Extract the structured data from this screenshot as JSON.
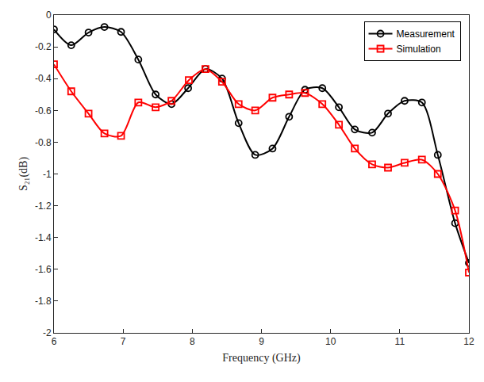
{
  "chart_data": {
    "type": "line",
    "x_label": "Frequency (GHz)",
    "y_label": "S₂₁(dB)",
    "xlim": [
      6,
      12
    ],
    "xticks": [
      6,
      7,
      8,
      9,
      10,
      11,
      12
    ],
    "ylim": [
      -2,
      0
    ],
    "yticks": [
      -2,
      -1.8,
      -1.6,
      -1.4,
      -1.2,
      -1,
      -0.8,
      -0.6,
      -0.4,
      -0.2,
      0
    ],
    "grid": false,
    "legend": "top right",
    "series": [
      {
        "name": "Measurement",
        "color": "#000000",
        "marker": "circle",
        "line_style": "solid",
        "x": [
          6.0,
          6.25,
          6.5,
          6.73,
          6.97,
          7.22,
          7.47,
          7.7,
          7.94,
          8.19,
          8.43,
          8.67,
          8.91,
          9.16,
          9.4,
          9.63,
          9.88,
          10.12,
          10.35,
          10.6,
          10.83,
          11.07,
          11.32,
          11.55,
          11.8,
          12.0
        ],
        "values": [
          -0.09,
          -0.19,
          -0.11,
          -0.075,
          -0.106,
          -0.28,
          -0.5,
          -0.56,
          -0.46,
          -0.34,
          -0.4,
          -0.68,
          -0.88,
          -0.84,
          -0.64,
          -0.47,
          -0.46,
          -0.58,
          -0.72,
          -0.74,
          -0.62,
          -0.54,
          -0.55,
          -0.88,
          -1.31,
          -1.56
        ]
      },
      {
        "name": "Simulation",
        "color": "#ff0000",
        "marker": "square",
        "line_style": "solid",
        "x": [
          6.0,
          6.25,
          6.5,
          6.73,
          6.97,
          7.22,
          7.47,
          7.7,
          7.95,
          8.19,
          8.43,
          8.67,
          8.91,
          9.16,
          9.4,
          9.63,
          9.88,
          10.12,
          10.35,
          10.6,
          10.83,
          11.07,
          11.32,
          11.55,
          11.8,
          12.0
        ],
        "values": [
          -0.31,
          -0.48,
          -0.62,
          -0.745,
          -0.76,
          -0.55,
          -0.58,
          -0.54,
          -0.41,
          -0.34,
          -0.42,
          -0.56,
          -0.6,
          -0.52,
          -0.5,
          -0.49,
          -0.56,
          -0.69,
          -0.84,
          -0.94,
          -0.96,
          -0.93,
          -0.91,
          -1.0,
          -1.23,
          -1.62
        ]
      }
    ]
  }
}
